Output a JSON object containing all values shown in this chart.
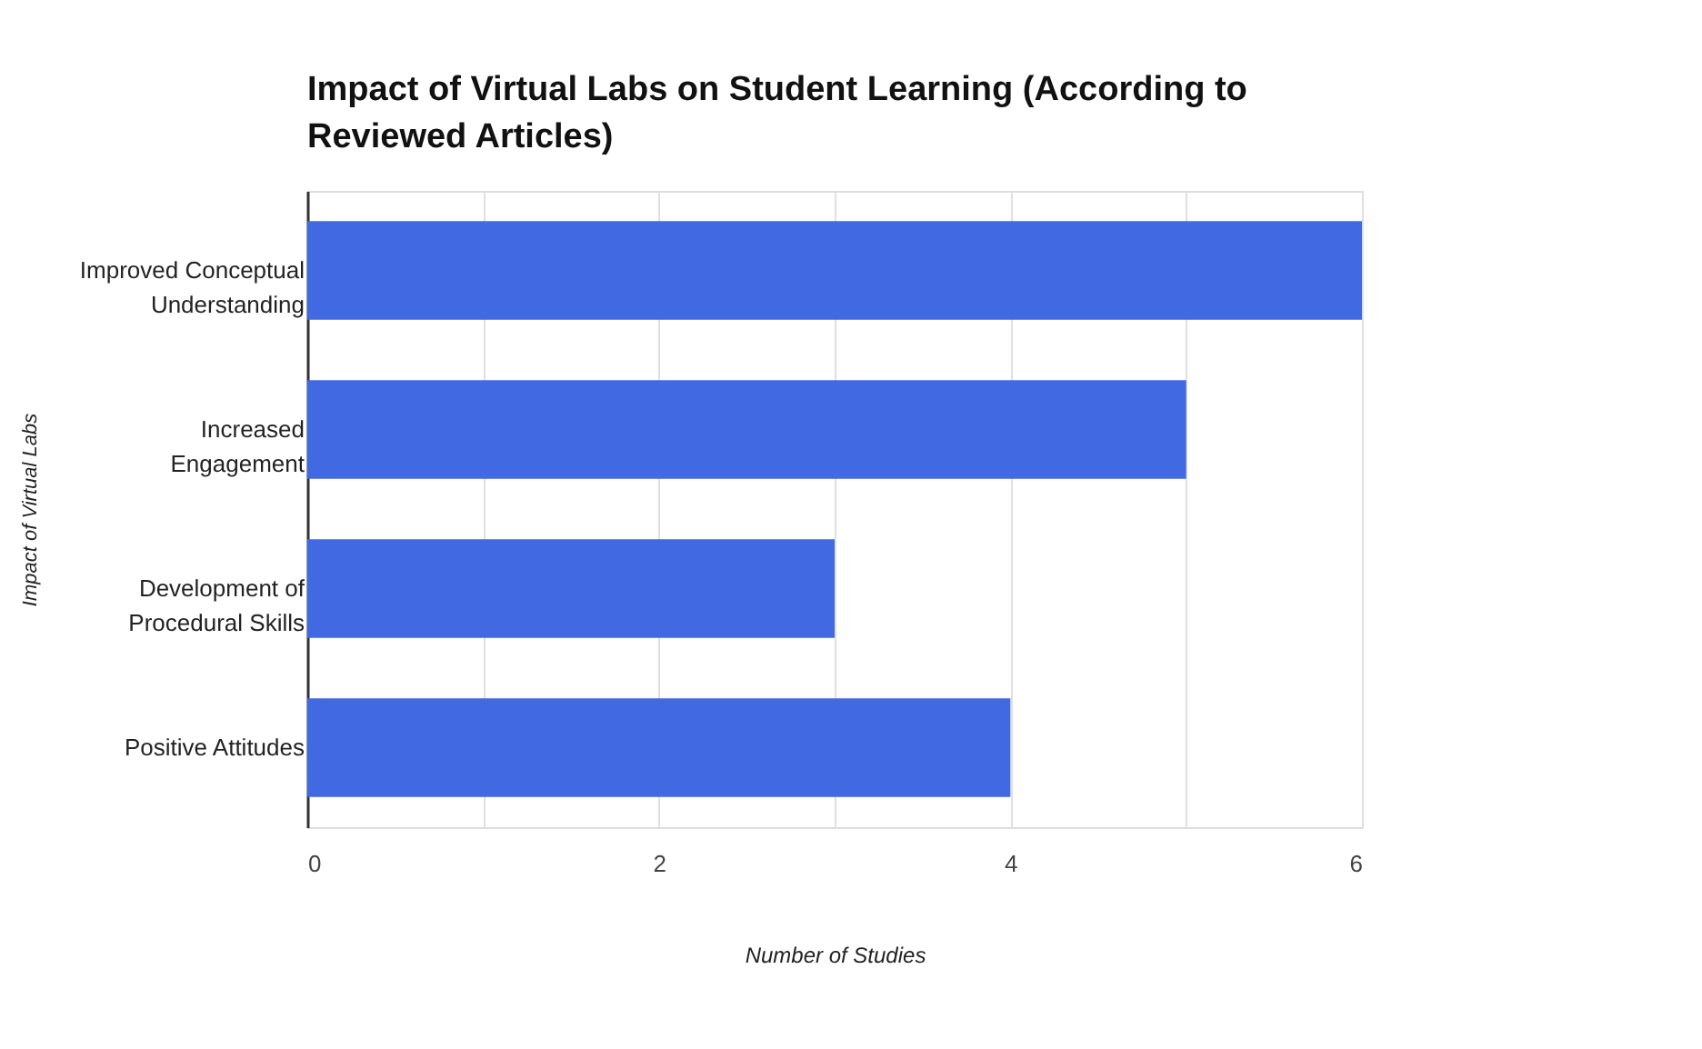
{
  "chart_data": {
    "type": "bar",
    "orientation": "horizontal",
    "title": "Impact of Virtual Labs on Student Learning (According to Reviewed Articles)",
    "xlabel": "Number of Studies",
    "ylabel": "Impact of Virtual Labs",
    "categories": [
      "Improved Conceptual Understanding",
      "Increased Engagement",
      "Development of Procedural Skills",
      "Positive Attitudes"
    ],
    "values": [
      6,
      5,
      3,
      4
    ],
    "color": "#4169e1",
    "xlim": [
      0,
      6
    ],
    "xticks": [
      0,
      {
        "value": 1,
        "label": null
      },
      2,
      {
        "value": 3,
        "label": null
      },
      4,
      {
        "value": 5,
        "label": null
      },
      6
    ],
    "grid": "x"
  }
}
